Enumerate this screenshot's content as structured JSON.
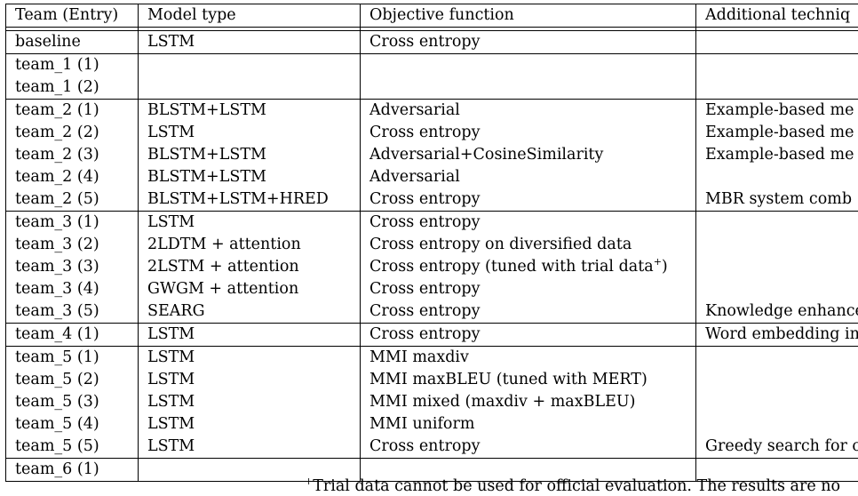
{
  "headers": [
    "Team (Entry)",
    "Model type",
    "Objective function",
    "Additional techniq"
  ],
  "rows": [
    {
      "team": "baseline",
      "model": "LSTM",
      "objective": "Cross entropy",
      "extra": ""
    },
    {
      "team": "team_1 (1)",
      "model": "",
      "objective": "",
      "extra": ""
    },
    {
      "team": "team_1 (2)",
      "model": "",
      "objective": "",
      "extra": ""
    },
    {
      "team": "team_2 (1)",
      "model": "BLSTM+LSTM",
      "objective": "Adversarial",
      "extra": "Example-based me"
    },
    {
      "team": "team_2 (2)",
      "model": "LSTM",
      "objective": "Cross entropy",
      "extra": "Example-based me"
    },
    {
      "team": "team_2 (3)",
      "model": "BLSTM+LSTM",
      "objective": "Adversarial+CosineSimilarity",
      "extra": "Example-based me"
    },
    {
      "team": "team_2 (4)",
      "model": "BLSTM+LSTM",
      "objective": "Adversarial",
      "extra": ""
    },
    {
      "team": "team_2 (5)",
      "model": "BLSTM+LSTM+HRED",
      "objective": "Cross entropy",
      "extra": "MBR system comb"
    },
    {
      "team": "team_3 (1)",
      "model": "LSTM",
      "objective": "Cross entropy",
      "extra": ""
    },
    {
      "team": "team_3 (2)",
      "model": "2LDTM + attention",
      "objective": "Cross entropy on diversified data",
      "extra": ""
    },
    {
      "team": "team_3 (3)",
      "model": "2LSTM + attention",
      "objective": "Cross entropy (tuned with trial data",
      "objective_sup": "+",
      "objective_tail": ")",
      "extra": ""
    },
    {
      "team": "team_3 (4)",
      "model": "GWGM + attention",
      "objective": "Cross entropy",
      "extra": ""
    },
    {
      "team": "team_3 (5)",
      "model": "SEARG",
      "objective": "Cross entropy",
      "extra": "Knowledge enhance"
    },
    {
      "team": "team_4 (1)",
      "model": "LSTM",
      "objective": "Cross entropy",
      "extra": "Word embedding in"
    },
    {
      "team": "team_5 (1)",
      "model": "LSTM",
      "objective": "MMI maxdiv",
      "extra": ""
    },
    {
      "team": "team_5 (2)",
      "model": "LSTM",
      "objective": "MMI maxBLEU (tuned with MERT)",
      "extra": ""
    },
    {
      "team": "team_5 (3)",
      "model": "LSTM",
      "objective": "MMI mixed (maxdiv + maxBLEU)",
      "extra": ""
    },
    {
      "team": "team_5 (4)",
      "model": "LSTM",
      "objective": "MMI uniform",
      "extra": ""
    },
    {
      "team": "team_5 (5)",
      "model": "LSTM",
      "objective": "Cross entropy",
      "extra": "Greedy search for c"
    },
    {
      "team": "team_6 (1)",
      "model": "",
      "objective": "",
      "extra": ""
    }
  ],
  "group_end_rows": [
    0,
    2,
    7,
    12,
    13,
    18,
    19
  ],
  "footnote": {
    "sup": "+",
    "text": "Trial data cannot be used for official evaluation. The results are no"
  }
}
